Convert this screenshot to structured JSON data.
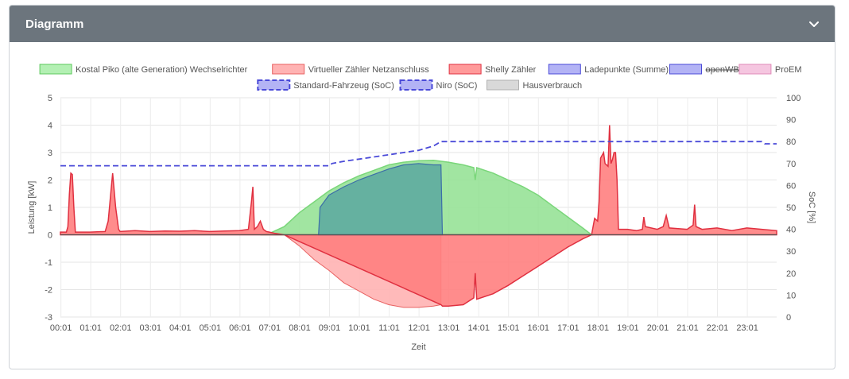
{
  "card": {
    "title": "Diagramm",
    "toggle_icon": "chevron-down-icon"
  },
  "colors": {
    "header_bg": "#6c757d",
    "pv_fill": "#90e090",
    "pv_line": "#7ad67a",
    "grid_fill": "#ff8080",
    "grid_line": "#e03040",
    "feedin_fill": "#ffb3b3",
    "charge_fill": "#5aa8a0",
    "charge_line": "#3c6ea8",
    "soc_line": "#4a4ad8"
  },
  "chart_data": {
    "type": "area",
    "x_axis": {
      "label": "Zeit",
      "ticks": [
        "00:01",
        "01:01",
        "02:01",
        "03:01",
        "04:01",
        "05:01",
        "06:01",
        "07:01",
        "08:01",
        "09:01",
        "10:01",
        "11:01",
        "12:01",
        "13:01",
        "14:01",
        "15:01",
        "16:01",
        "17:01",
        "18:01",
        "19:01",
        "20:01",
        "21:01",
        "22:01",
        "23:01"
      ],
      "range_hours": [
        0,
        24
      ]
    },
    "y_axis_left": {
      "label": "Leistung [kW]",
      "range": [
        -3,
        5
      ],
      "ticks": [
        -3,
        -2,
        -1,
        0,
        1,
        2,
        3,
        4,
        5
      ]
    },
    "y_axis_right": {
      "label": "SoC [%]",
      "range": [
        0,
        100
      ],
      "ticks": [
        0,
        10,
        20,
        30,
        40,
        50,
        60,
        70,
        80,
        90,
        100
      ]
    },
    "legend": [
      {
        "label": "Kostal Piko (alte Generation) Wechselrichter",
        "fill": "#b3f0b3",
        "border": "#5ec95e",
        "style": "solid",
        "strike": false
      },
      {
        "label": "Virtueller Zähler Netzanschluss",
        "fill": "#ffb3b3",
        "border": "#e86060",
        "style": "solid",
        "strike": false
      },
      {
        "label": "Shelly Zähler",
        "fill": "#ff9a9a",
        "border": "#e03040",
        "style": "solid",
        "strike": false
      },
      {
        "label": "Ladepunkte (Summe)",
        "fill": "#b3b3f5",
        "border": "#4a4ad8",
        "style": "solid",
        "strike": false
      },
      {
        "label": "openWB",
        "fill": "#b3b3f5",
        "border": "#4a4ad8",
        "style": "solid",
        "strike": true
      },
      {
        "label": "ProEM",
        "fill": "#f5c6e0",
        "border": "#e08ab8",
        "style": "solid",
        "strike": false
      },
      {
        "label": "Standard-Fahrzeug (SoC)",
        "fill": "#b3b3f5",
        "border": "#4a4ad8",
        "style": "dashed",
        "strike": false
      },
      {
        "label": "Niro (SoC)",
        "fill": "#b3b3f5",
        "border": "#4a4ad8",
        "style": "dashed",
        "strike": false
      },
      {
        "label": "Hausverbrauch",
        "fill": "#d9d9d9",
        "border": "#b0b0b0",
        "style": "solid",
        "strike": false
      }
    ],
    "series": [
      {
        "name": "Kostal Piko (alte Generation) Wechselrichter",
        "axis": "left",
        "x": [
          6.7,
          7.0,
          7.5,
          8.0,
          8.5,
          9.0,
          9.5,
          10.0,
          10.5,
          11.0,
          11.5,
          12.0,
          12.5,
          13.0,
          13.5,
          13.85,
          13.9,
          13.95,
          14.5,
          15.0,
          15.5,
          16.0,
          16.5,
          17.0,
          17.5,
          17.8
        ],
        "y": [
          0,
          0.05,
          0.3,
          0.8,
          1.2,
          1.6,
          1.9,
          2.15,
          2.35,
          2.55,
          2.65,
          2.7,
          2.72,
          2.65,
          2.55,
          2.45,
          2.0,
          2.45,
          2.25,
          2.0,
          1.75,
          1.45,
          1.05,
          0.65,
          0.25,
          0
        ]
      },
      {
        "name": "Virtueller Zähler Netzanschluss",
        "axis": "left",
        "x": [
          7.5,
          8.0,
          8.5,
          9.0,
          9.5,
          10.0,
          10.5,
          11.0,
          11.5,
          12.0,
          12.5,
          12.75
        ],
        "y": [
          0,
          -0.4,
          -0.9,
          -1.3,
          -1.75,
          -2.05,
          -2.35,
          -2.55,
          -2.65,
          -2.65,
          -2.6,
          -2.55
        ]
      },
      {
        "name": "Shelly Zähler",
        "axis": "left",
        "x": [
          0,
          0.2,
          0.25,
          0.3,
          0.35,
          0.4,
          0.45,
          0.5,
          1.0,
          1.5,
          1.6,
          1.75,
          1.85,
          1.95,
          2.0,
          2.5,
          3.0,
          3.5,
          4.0,
          4.5,
          5.0,
          5.5,
          6.0,
          6.3,
          6.4,
          6.45,
          6.5,
          6.6,
          6.7,
          6.8,
          6.9,
          7.0,
          7.2,
          7.5,
          12.75,
          12.8,
          13.0,
          13.5,
          13.85,
          13.9,
          13.95,
          14.5,
          15.0,
          15.5,
          16.0,
          16.5,
          17.0,
          17.5,
          17.8,
          17.9,
          18.0,
          18.05,
          18.1,
          18.2,
          18.25,
          18.35,
          18.4,
          18.45,
          18.5,
          18.55,
          18.6,
          18.65,
          18.7,
          19.0,
          19.3,
          19.5,
          19.55,
          19.6,
          20.0,
          20.2,
          20.3,
          20.4,
          21.0,
          21.2,
          21.25,
          21.3,
          21.5,
          22.0,
          22.5,
          23.0,
          23.5,
          24.0
        ],
        "y": [
          0.1,
          0.1,
          0.3,
          1.5,
          2.25,
          2.2,
          1.0,
          0.1,
          0.1,
          0.12,
          0.5,
          2.25,
          1.0,
          0.2,
          0.12,
          0.15,
          0.12,
          0.14,
          0.13,
          0.15,
          0.12,
          0.14,
          0.15,
          0.2,
          1.2,
          1.75,
          0.2,
          0.3,
          0.5,
          0.2,
          0.12,
          0.1,
          0.05,
          0,
          -2.55,
          -2.6,
          -2.6,
          -2.55,
          -2.3,
          -1.4,
          -2.35,
          -2.15,
          -1.85,
          -1.5,
          -1.15,
          -0.8,
          -0.45,
          -0.15,
          0,
          0.6,
          0.5,
          1.2,
          2.8,
          3.0,
          2.6,
          2.5,
          4.0,
          2.6,
          2.75,
          3.0,
          3.0,
          2.0,
          0.2,
          0.2,
          0.15,
          0.2,
          0.65,
          0.3,
          0.2,
          0.3,
          0.7,
          0.25,
          0.2,
          0.35,
          1.1,
          0.3,
          0.2,
          0.25,
          0.15,
          0.25,
          0.2,
          0.15
        ]
      },
      {
        "name": "Ladepunkte (Summe)",
        "axis": "left",
        "x": [
          8.65,
          8.7,
          9.0,
          9.5,
          10.0,
          10.5,
          11.0,
          11.5,
          12.0,
          12.5,
          12.75,
          12.8
        ],
        "y": [
          0,
          1.0,
          1.45,
          1.75,
          2.0,
          2.2,
          2.4,
          2.55,
          2.6,
          2.55,
          2.55,
          0
        ]
      },
      {
        "name": "Standard-Fahrzeug (SoC)",
        "axis": "right",
        "x": [
          0,
          9.0,
          9.1,
          9.5,
          10.0,
          10.5,
          11.0,
          11.5,
          12.0,
          12.5,
          12.75,
          13.0,
          23.5,
          23.6,
          24.0
        ],
        "y": [
          69,
          69,
          70,
          71,
          72,
          73,
          74,
          75,
          76,
          78,
          80,
          80,
          80,
          79,
          79
        ]
      }
    ]
  }
}
